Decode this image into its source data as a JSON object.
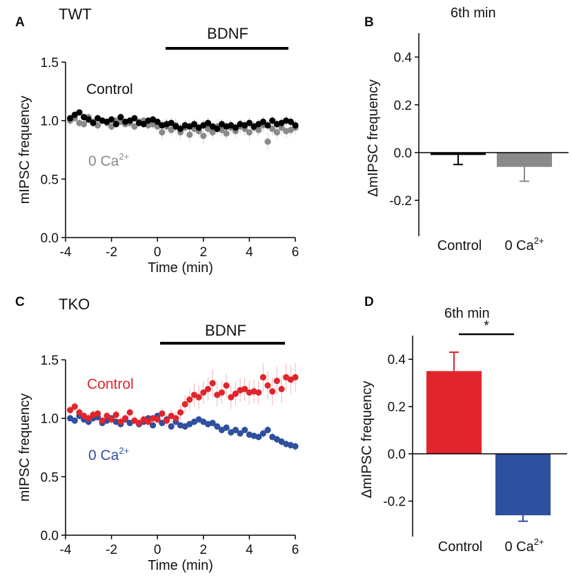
{
  "chart_data": [
    {
      "panel": "A",
      "type": "scatter",
      "title": "TWT",
      "treatment_label": "BDNF",
      "treatment_range": [
        0.5,
        5.8
      ],
      "xlabel": "Time (min)",
      "ylabel": "mIPSC frequency",
      "xlim": [
        -4,
        6
      ],
      "ylim": [
        0,
        1.5
      ],
      "xticks": [
        "-4",
        "-2",
        "0",
        "2",
        "4",
        "6"
      ],
      "yticks": [
        "0.0",
        "0.5",
        "1.0",
        "1.5"
      ],
      "series": [
        {
          "name": "Control",
          "color": "#000000",
          "x": [
            -3.8,
            -3.6,
            -3.4,
            -3.2,
            -3.0,
            -2.8,
            -2.6,
            -2.4,
            -2.2,
            -2.0,
            -1.8,
            -1.6,
            -1.4,
            -1.2,
            -1.0,
            -0.8,
            -0.6,
            -0.4,
            -0.2,
            0.0,
            0.2,
            0.4,
            0.6,
            0.8,
            1.0,
            1.2,
            1.4,
            1.6,
            1.8,
            2.0,
            2.2,
            2.4,
            2.6,
            2.8,
            3.0,
            3.2,
            3.4,
            3.6,
            3.8,
            4.0,
            4.2,
            4.4,
            4.6,
            4.8,
            5.0,
            5.2,
            5.4,
            5.6,
            5.8,
            6.0
          ],
          "values": [
            1.02,
            1.05,
            1.07,
            1.03,
            1.01,
            0.98,
            1.02,
            1.0,
            0.99,
            1.01,
            0.97,
            1.03,
            0.99,
            1.0,
            1.02,
            0.98,
            0.97,
            1.0,
            1.01,
            0.99,
            0.96,
            0.97,
            0.98,
            0.95,
            0.93,
            0.96,
            0.95,
            0.97,
            0.94,
            0.96,
            0.98,
            0.95,
            0.93,
            0.97,
            0.95,
            0.96,
            0.94,
            0.97,
            0.96,
            0.98,
            0.95,
            0.97,
            0.99,
            0.96,
            1.0,
            0.97,
            0.98,
            1.0,
            0.99,
            0.96
          ],
          "errors": [
            0.03,
            0.03,
            0.03,
            0.03,
            0.03,
            0.03,
            0.03,
            0.03,
            0.03,
            0.03,
            0.03,
            0.03,
            0.03,
            0.03,
            0.03,
            0.03,
            0.03,
            0.03,
            0.03,
            0.03,
            0.04,
            0.04,
            0.04,
            0.04,
            0.04,
            0.04,
            0.04,
            0.04,
            0.04,
            0.04,
            0.04,
            0.04,
            0.04,
            0.04,
            0.04,
            0.04,
            0.04,
            0.04,
            0.04,
            0.04,
            0.04,
            0.04,
            0.04,
            0.04,
            0.04,
            0.04,
            0.04,
            0.04,
            0.04,
            0.04
          ]
        },
        {
          "name": "0 Ca",
          "superscript": "2+",
          "color": "#8a8a8a",
          "x": [
            -3.8,
            -3.6,
            -3.4,
            -3.2,
            -3.0,
            -2.8,
            -2.6,
            -2.4,
            -2.2,
            -2.0,
            -1.8,
            -1.6,
            -1.4,
            -1.2,
            -1.0,
            -0.8,
            -0.6,
            -0.4,
            -0.2,
            0.0,
            0.2,
            0.4,
            0.6,
            0.8,
            1.0,
            1.2,
            1.4,
            1.6,
            1.8,
            2.0,
            2.2,
            2.4,
            2.6,
            2.8,
            3.0,
            3.2,
            3.4,
            3.6,
            3.8,
            4.0,
            4.2,
            4.4,
            4.6,
            4.8,
            5.0,
            5.2,
            5.4,
            5.6,
            5.8,
            6.0
          ],
          "values": [
            1.0,
            1.02,
            0.98,
            0.97,
            1.03,
            0.99,
            0.96,
            1.0,
            0.98,
            0.95,
            1.0,
            0.99,
            0.97,
            0.98,
            0.95,
            0.99,
            1.0,
            0.96,
            0.97,
            0.95,
            0.9,
            0.95,
            0.92,
            0.96,
            0.9,
            0.94,
            0.88,
            0.93,
            0.91,
            0.87,
            0.93,
            0.9,
            0.95,
            0.92,
            0.89,
            0.94,
            0.91,
            0.95,
            0.93,
            0.9,
            0.94,
            0.92,
            0.96,
            0.82,
            0.93,
            0.9,
            0.94,
            0.91,
            0.92,
            0.94
          ],
          "errors": [
            0.04,
            0.04,
            0.04,
            0.04,
            0.04,
            0.04,
            0.04,
            0.04,
            0.04,
            0.04,
            0.04,
            0.04,
            0.04,
            0.04,
            0.04,
            0.04,
            0.04,
            0.04,
            0.04,
            0.04,
            0.06,
            0.06,
            0.06,
            0.06,
            0.07,
            0.06,
            0.07,
            0.06,
            0.06,
            0.07,
            0.06,
            0.06,
            0.06,
            0.06,
            0.06,
            0.06,
            0.06,
            0.06,
            0.06,
            0.07,
            0.06,
            0.06,
            0.06,
            0.08,
            0.06,
            0.06,
            0.07,
            0.06,
            0.06,
            0.06
          ]
        }
      ]
    },
    {
      "panel": "B",
      "type": "bar",
      "title": "6th min",
      "ylabel": "ΔmIPSC frequency",
      "ylim": [
        -0.35,
        0.5
      ],
      "yticks": [
        "-0.2",
        "0.0",
        "0.2",
        "0.4"
      ],
      "categories": [
        {
          "label": "Control",
          "superscript": ""
        },
        {
          "label": "0 Ca",
          "superscript": "2+"
        }
      ],
      "values": [
        -0.01,
        -0.06
      ],
      "errors": [
        0.04,
        0.06
      ],
      "colors": [
        "#000000",
        "#8a8a8a"
      ]
    },
    {
      "panel": "C",
      "type": "scatter",
      "title": "TKO",
      "treatment_label": "BDNF",
      "treatment_range": [
        0.3,
        5.7
      ],
      "xlabel": "Time (min)",
      "ylabel": "mIPSC frequency",
      "xlim": [
        -4,
        6
      ],
      "ylim": [
        0,
        1.5
      ],
      "xticks": [
        "-4",
        "-2",
        "0",
        "2",
        "4",
        "6"
      ],
      "yticks": [
        "0.0",
        "0.5",
        "1.0",
        "1.5"
      ],
      "series": [
        {
          "name": "Control",
          "color": "#e0262c",
          "x": [
            -3.8,
            -3.6,
            -3.4,
            -3.2,
            -3.0,
            -2.8,
            -2.6,
            -2.4,
            -2.2,
            -2.0,
            -1.8,
            -1.6,
            -1.4,
            -1.2,
            -1.0,
            -0.8,
            -0.6,
            -0.4,
            -0.2,
            0.0,
            0.2,
            0.4,
            0.6,
            0.8,
            1.0,
            1.2,
            1.4,
            1.6,
            1.8,
            2.0,
            2.2,
            2.4,
            2.6,
            2.8,
            3.0,
            3.2,
            3.4,
            3.6,
            3.8,
            4.0,
            4.2,
            4.4,
            4.6,
            4.8,
            5.0,
            5.2,
            5.4,
            5.6,
            5.8,
            6.0
          ],
          "values": [
            1.07,
            1.1,
            1.05,
            1.02,
            1.0,
            1.03,
            1.04,
            0.98,
            1.02,
            0.99,
            1.03,
            0.97,
            1.0,
            1.05,
            0.98,
            0.96,
            0.99,
            0.97,
            1.0,
            0.99,
            1.04,
            0.98,
            1.02,
            1.0,
            1.05,
            1.12,
            1.16,
            1.2,
            1.18,
            1.22,
            1.25,
            1.3,
            1.2,
            1.22,
            1.28,
            1.18,
            1.21,
            1.24,
            1.25,
            1.22,
            1.23,
            1.22,
            1.35,
            1.28,
            1.23,
            1.32,
            1.25,
            1.35,
            1.33,
            1.35
          ],
          "errors": [
            0.04,
            0.04,
            0.04,
            0.04,
            0.04,
            0.04,
            0.04,
            0.04,
            0.04,
            0.04,
            0.04,
            0.04,
            0.04,
            0.04,
            0.04,
            0.04,
            0.04,
            0.04,
            0.04,
            0.04,
            0.05,
            0.05,
            0.05,
            0.06,
            0.07,
            0.08,
            0.09,
            0.1,
            0.1,
            0.1,
            0.1,
            0.12,
            0.1,
            0.1,
            0.1,
            0.1,
            0.1,
            0.1,
            0.1,
            0.1,
            0.1,
            0.1,
            0.12,
            0.12,
            0.12,
            0.12,
            0.12,
            0.12,
            0.12,
            0.12
          ]
        },
        {
          "name": "0 Ca",
          "superscript": "2+",
          "color": "#2f4f9f",
          "x": [
            -3.8,
            -3.6,
            -3.4,
            -3.2,
            -3.0,
            -2.8,
            -2.6,
            -2.4,
            -2.2,
            -2.0,
            -1.8,
            -1.6,
            -1.4,
            -1.2,
            -1.0,
            -0.8,
            -0.6,
            -0.4,
            -0.2,
            0.0,
            0.2,
            0.4,
            0.6,
            0.8,
            1.0,
            1.2,
            1.4,
            1.6,
            1.8,
            2.0,
            2.2,
            2.4,
            2.6,
            2.8,
            3.0,
            3.2,
            3.4,
            3.6,
            3.8,
            4.0,
            4.2,
            4.4,
            4.6,
            4.8,
            5.0,
            5.2,
            5.4,
            5.6,
            5.8,
            6.0
          ],
          "values": [
            1.0,
            0.98,
            1.02,
            0.99,
            0.97,
            1.0,
            1.01,
            0.96,
            0.98,
            1.0,
            0.97,
            0.95,
            0.99,
            0.96,
            0.98,
            0.95,
            0.97,
            1.0,
            0.94,
            1.02,
            0.96,
            0.99,
            0.93,
            0.97,
            0.94,
            0.93,
            0.95,
            0.97,
            0.99,
            0.97,
            0.95,
            0.96,
            0.93,
            0.9,
            0.92,
            0.88,
            0.9,
            0.87,
            0.9,
            0.86,
            0.85,
            0.84,
            0.87,
            0.9,
            0.84,
            0.82,
            0.8,
            0.78,
            0.77,
            0.76
          ],
          "errors": [
            0.03,
            0.03,
            0.03,
            0.03,
            0.03,
            0.03,
            0.03,
            0.03,
            0.03,
            0.03,
            0.03,
            0.03,
            0.03,
            0.03,
            0.03,
            0.03,
            0.03,
            0.03,
            0.03,
            0.03,
            0.03,
            0.03,
            0.03,
            0.03,
            0.03,
            0.03,
            0.03,
            0.03,
            0.03,
            0.03,
            0.03,
            0.03,
            0.03,
            0.03,
            0.03,
            0.03,
            0.03,
            0.03,
            0.03,
            0.03,
            0.03,
            0.03,
            0.04,
            0.04,
            0.04,
            0.04,
            0.04,
            0.04,
            0.04,
            0.04
          ]
        }
      ]
    },
    {
      "panel": "D",
      "type": "bar",
      "title": "6th min",
      "significance": "*",
      "ylabel": "ΔmIPSC frequency",
      "ylim": [
        -0.35,
        0.5
      ],
      "yticks": [
        "-0.2",
        "0.0",
        "0.2",
        "0.4"
      ],
      "categories": [
        {
          "label": "Control",
          "superscript": ""
        },
        {
          "label": "0 Ca",
          "superscript": "2+"
        }
      ],
      "values": [
        0.35,
        -0.26
      ],
      "errors": [
        0.08,
        0.025
      ],
      "colors": [
        "#e0262c",
        "#2f4f9f"
      ]
    }
  ]
}
